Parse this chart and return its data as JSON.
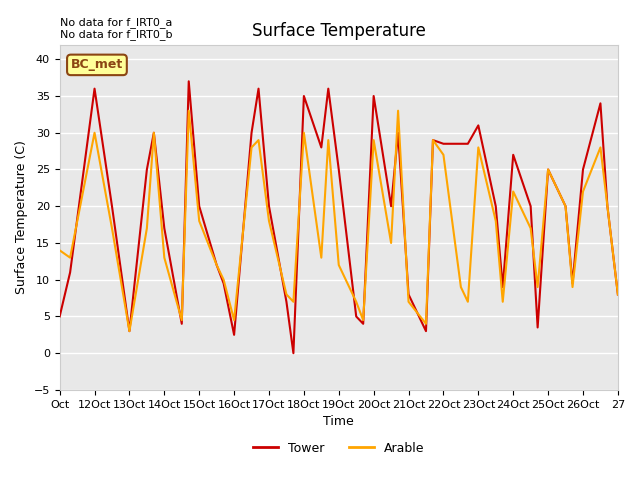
{
  "title": "Surface Temperature",
  "xlabel": "Time",
  "ylabel": "Surface Temperature (C)",
  "ylim": [
    -5,
    42
  ],
  "yticks": [
    -5,
    0,
    5,
    10,
    15,
    20,
    25,
    30,
    35,
    40
  ],
  "annotation_text": "No data for f_IRT0_a\nNo data for f_IRT0_b",
  "legend_box_text": "BC_met",
  "legend_box_color": "#FFFF99",
  "legend_box_edge": "#8B4513",
  "tower_color": "#CC0000",
  "arable_color": "#FFA500",
  "bg_color": "#E8E8E8",
  "plot_bg_color": "#E8E8E8",
  "x_tick_labels": [
    "Oct",
    "12Oct",
    "13Oct",
    "14Oct",
    "15Oct",
    "16Oct",
    "17Oct",
    "18Oct",
    "19Oct",
    "20Oct",
    "21Oct",
    "22Oct",
    "23Oct",
    "24Oct",
    "25Oct",
    "26Oct",
    "27"
  ],
  "tower_x": [
    0,
    0.3,
    1.0,
    1.5,
    2.0,
    2.5,
    2.7,
    3.0,
    3.5,
    3.7,
    4.0,
    4.5,
    4.7,
    5.0,
    5.5,
    5.7,
    6.0,
    6.5,
    6.7,
    7.0,
    7.5,
    7.7,
    8.0,
    8.5,
    8.7,
    9.0,
    9.5,
    9.7,
    10.0,
    10.5,
    10.7,
    11.0,
    11.5,
    11.7,
    12.0,
    12.5,
    12.7,
    13.0,
    13.5,
    13.7,
    14.0,
    14.5,
    14.7,
    15.0,
    15.5,
    15.7,
    16.0
  ],
  "tower_y": [
    5,
    11,
    36,
    20,
    3,
    25,
    30,
    17,
    4,
    37,
    20,
    12,
    9.5,
    2.5,
    30,
    36,
    20,
    7,
    0,
    35,
    28,
    36,
    25,
    5,
    4,
    35,
    20,
    30,
    8,
    3,
    29,
    28.5,
    28.5,
    28.5,
    31,
    20,
    9,
    27,
    20,
    3.5,
    25,
    20,
    9.5,
    25,
    34,
    20,
    8
  ],
  "arable_x": [
    0,
    0.3,
    1.0,
    1.5,
    2.0,
    2.5,
    2.7,
    3.0,
    3.5,
    3.7,
    4.0,
    4.5,
    4.7,
    5.0,
    5.5,
    5.7,
    6.0,
    6.5,
    6.7,
    7.0,
    7.5,
    7.7,
    8.0,
    8.5,
    8.7,
    9.0,
    9.5,
    9.7,
    10.0,
    10.5,
    10.7,
    11.0,
    11.5,
    11.7,
    12.0,
    12.5,
    12.7,
    13.0,
    13.5,
    13.7,
    14.0,
    14.5,
    14.7,
    15.0,
    15.5,
    15.7,
    16.0
  ],
  "arable_y": [
    14,
    13,
    30,
    17,
    3,
    17,
    30,
    13,
    4.5,
    33,
    18,
    12,
    10,
    4.5,
    28,
    29,
    18,
    8,
    7,
    30,
    13,
    29,
    12,
    7,
    4.5,
    29,
    15,
    33,
    7,
    4,
    29,
    27,
    9,
    7,
    28,
    18,
    7,
    22,
    17,
    9,
    25,
    20,
    9,
    22,
    28,
    20,
    8
  ]
}
